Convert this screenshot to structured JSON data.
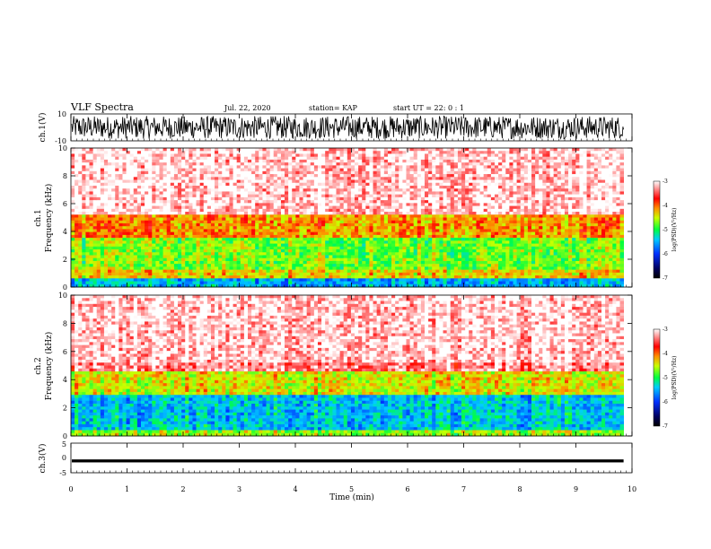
{
  "header": {
    "title": "VLF Spectra",
    "date": "Jul. 22, 2020",
    "station": "station= KAP",
    "start": "start UT =  22: 0  : 1"
  },
  "chart_data": [
    {
      "type": "line",
      "panel": "ch1-waveform",
      "ylabel": "ch.1(V)",
      "ylim": [
        -10,
        10
      ],
      "yticks": [
        "10",
        "-10"
      ],
      "description_values": "dense noisy waveform saturating between about -8 and 8 V"
    },
    {
      "type": "heatmap",
      "panel": "ch1-spectrogram",
      "ylabel": "ch.1\nFrequency (kHz)",
      "ylim": [
        0,
        10
      ],
      "yticks": [
        "0",
        "2",
        "4",
        "6",
        "8",
        "10"
      ],
      "xlim": [
        0,
        9.85
      ],
      "bands": [
        {
          "from": 0.0,
          "to": 0.6,
          "level": -5.5
        },
        {
          "from": 0.6,
          "to": 1.3,
          "level": -4.3
        },
        {
          "from": 1.3,
          "to": 3.6,
          "level": -4.7
        },
        {
          "from": 3.6,
          "to": 5.2,
          "level": -4.1
        },
        {
          "from": 5.2,
          "to": 10.0,
          "level": -3.3
        }
      ],
      "colorbar": {
        "label": "log(PSD)(V²/Hz)",
        "ticks": [
          "-3",
          "-4",
          "-5",
          "-6",
          "-7"
        ],
        "range": [
          -7,
          -3
        ]
      }
    },
    {
      "type": "heatmap",
      "panel": "ch2-spectrogram",
      "ylabel": "ch.2\nFrequency (kHz)",
      "ylim": [
        0,
        10
      ],
      "yticks": [
        "0",
        "2",
        "4",
        "6",
        "8",
        "10"
      ],
      "xlim": [
        0,
        9.85
      ],
      "bands": [
        {
          "from": 0.0,
          "to": 0.5,
          "level": -4.6
        },
        {
          "from": 0.5,
          "to": 3.0,
          "level": -5.4
        },
        {
          "from": 3.0,
          "to": 4.5,
          "level": -4.4
        },
        {
          "from": 4.5,
          "to": 10.0,
          "level": -3.3
        }
      ],
      "colorbar": {
        "label": "log(PSD)(V²/Hz)",
        "ticks": [
          "-3",
          "-4",
          "-5",
          "-6",
          "-7"
        ],
        "range": [
          -7,
          -3
        ]
      }
    },
    {
      "type": "line",
      "panel": "ch3-waveform",
      "ylabel": "ch.3(V)",
      "ylim": [
        -5,
        5
      ],
      "yticks": [
        "5",
        "0",
        "-5"
      ],
      "xlabel": "Time (min)",
      "xlim": [
        0,
        10
      ],
      "xticks": [
        "0",
        "1",
        "2",
        "3",
        "4",
        "5",
        "6",
        "7",
        "8",
        "9",
        "10"
      ],
      "level": -1,
      "amplitude": 0.5
    }
  ]
}
